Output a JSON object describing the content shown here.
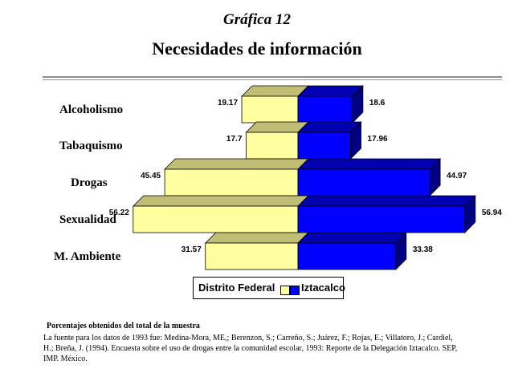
{
  "header": {
    "kicker": "Gráfica 12",
    "title": "Necesidades de información"
  },
  "legend": {
    "items": [
      {
        "label": "Distrito Federal",
        "color": "#ffffa0"
      },
      {
        "label": "Iztacalco",
        "color": "#0000ff"
      }
    ]
  },
  "footnote": {
    "title": "Porcentajes obtenidos del total de la muestra",
    "body": "La fuente para los datos de 1993 fue: Medina-Mora, ME,; Berenzon, S.; Carreño, S.; Juárez, F.; Rojas, E.; Villatoro, J.; Cardiel, H.; Breña, J. (1994). Encuesta sobre el uso de drogas entre la comunidad escolar, 1993: Reporte de la Delegación Iztacalco. SEP, IMP. México."
  },
  "chart_data": {
    "type": "bar",
    "orientation": "horizontal-diverging",
    "style": "3d",
    "categories": [
      "Alcoholismo",
      "Tabaquismo",
      "Drogas",
      "Sexualidad",
      "M. Ambiente"
    ],
    "series": [
      {
        "name": "Distrito Federal",
        "values": [
          19.17,
          17.7,
          45.45,
          56.22,
          31.57
        ],
        "color": "#ffffa0",
        "side": "left"
      },
      {
        "name": "Iztacalco",
        "values": [
          18.6,
          17.96,
          44.97,
          56.94,
          33.38
        ],
        "color": "#0000ff",
        "side": "right"
      }
    ],
    "data_labels": [
      "19.17",
      "18.6",
      "17.7",
      "17.96",
      "45.45",
      "44.97",
      "56.22",
      "56.94",
      "31.57",
      "33.38"
    ],
    "legend_position": "bottom",
    "grid": false
  }
}
